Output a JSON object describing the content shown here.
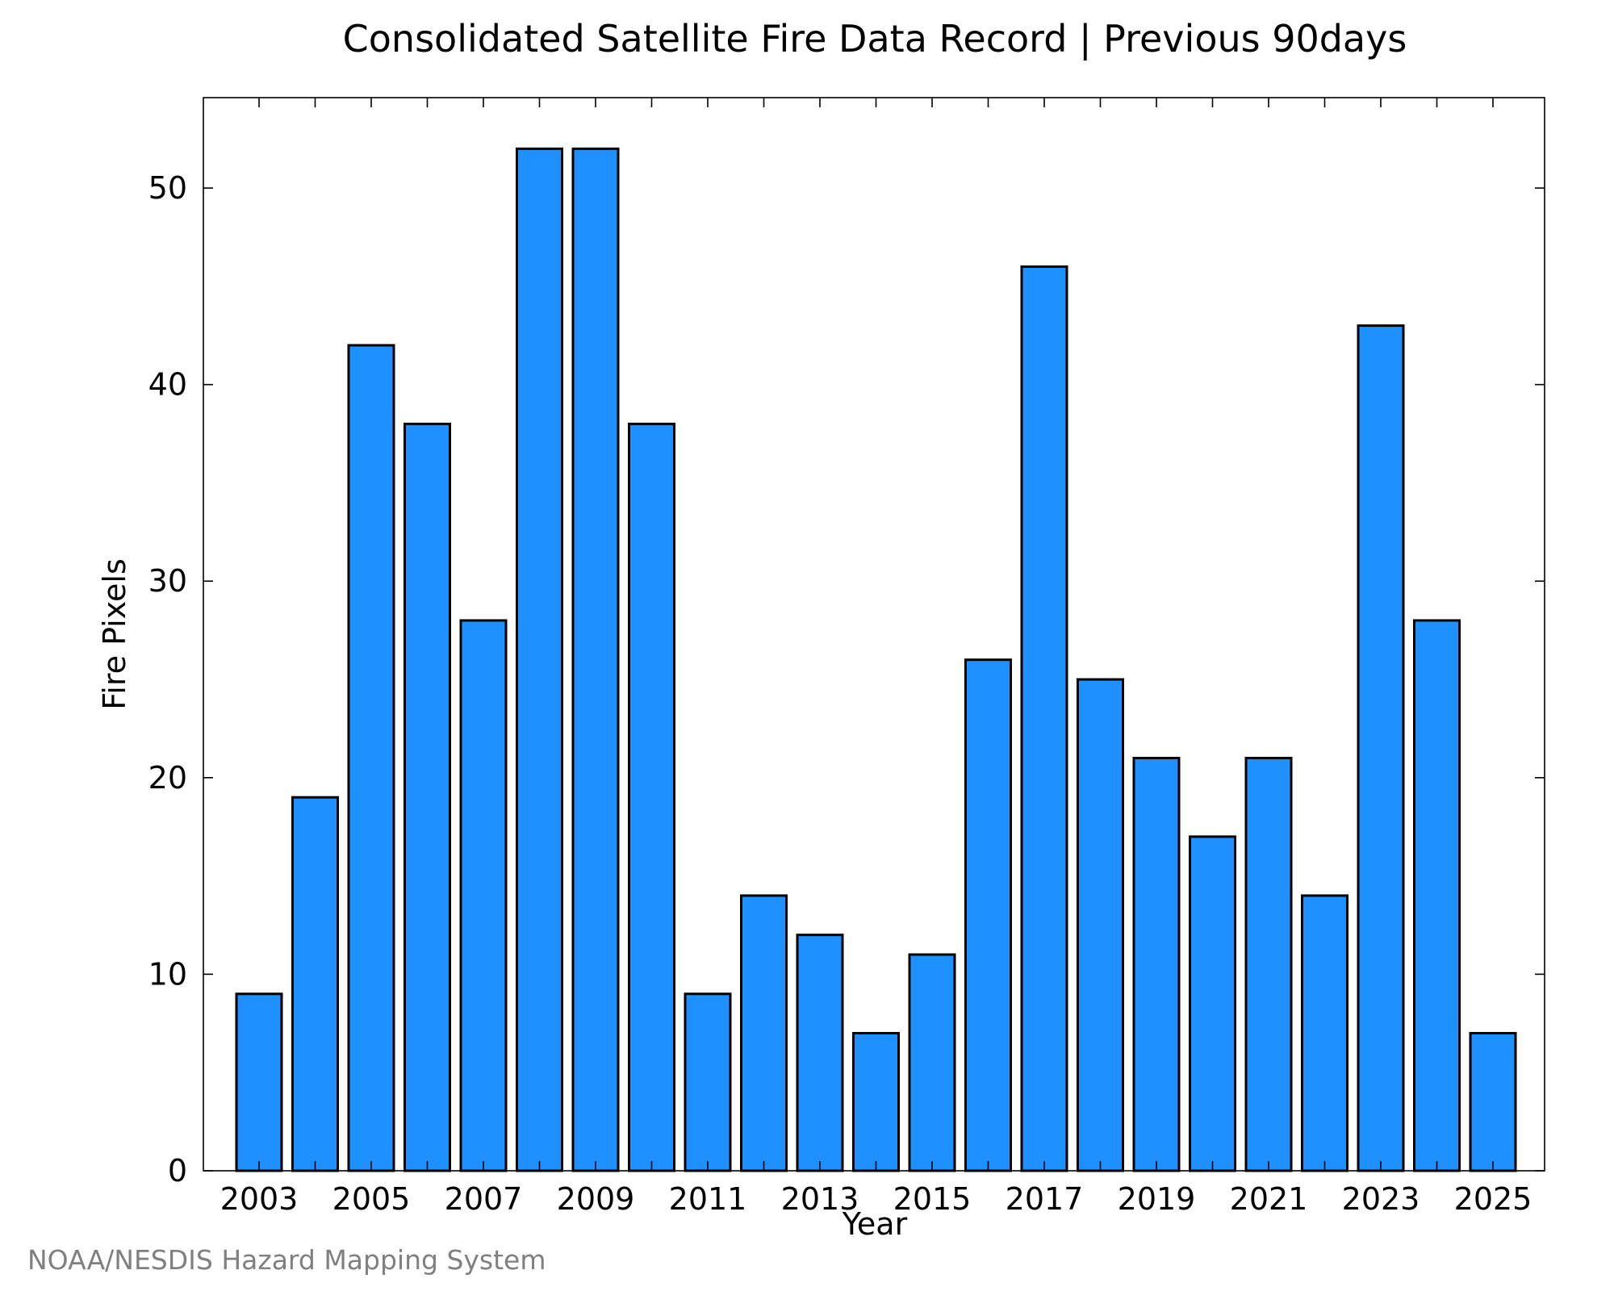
{
  "chart_data": {
    "type": "bar",
    "title": "Consolidated Satellite Fire Data Record | Previous 90days",
    "xlabel": "Year",
    "ylabel": "Fire Pixels",
    "categories": [
      "2003",
      "2004",
      "2005",
      "2006",
      "2007",
      "2008",
      "2009",
      "2010",
      "2011",
      "2012",
      "2013",
      "2014",
      "2015",
      "2016",
      "2017",
      "2018",
      "2019",
      "2020",
      "2021",
      "2022",
      "2023",
      "2024",
      "2025"
    ],
    "values": [
      9,
      19,
      42,
      38,
      28,
      52,
      52,
      38,
      9,
      14,
      12,
      7,
      11,
      26,
      46,
      25,
      21,
      17,
      21,
      14,
      43,
      28,
      7
    ],
    "x_tick_labels": [
      "2003",
      "2005",
      "2007",
      "2009",
      "2011",
      "2013",
      "2015",
      "2017",
      "2019",
      "2021",
      "2023",
      "2025"
    ],
    "y_tick_labels": [
      "0",
      "10",
      "20",
      "30",
      "40",
      "50"
    ],
    "ylim": [
      0,
      54.6
    ],
    "grid": false,
    "legend": "none",
    "bar_color": "#1e90ff",
    "edge_color": "#000000"
  },
  "credit": {
    "text": "NOAA/NESDIS Hazard Mapping System",
    "color": "#808080"
  }
}
